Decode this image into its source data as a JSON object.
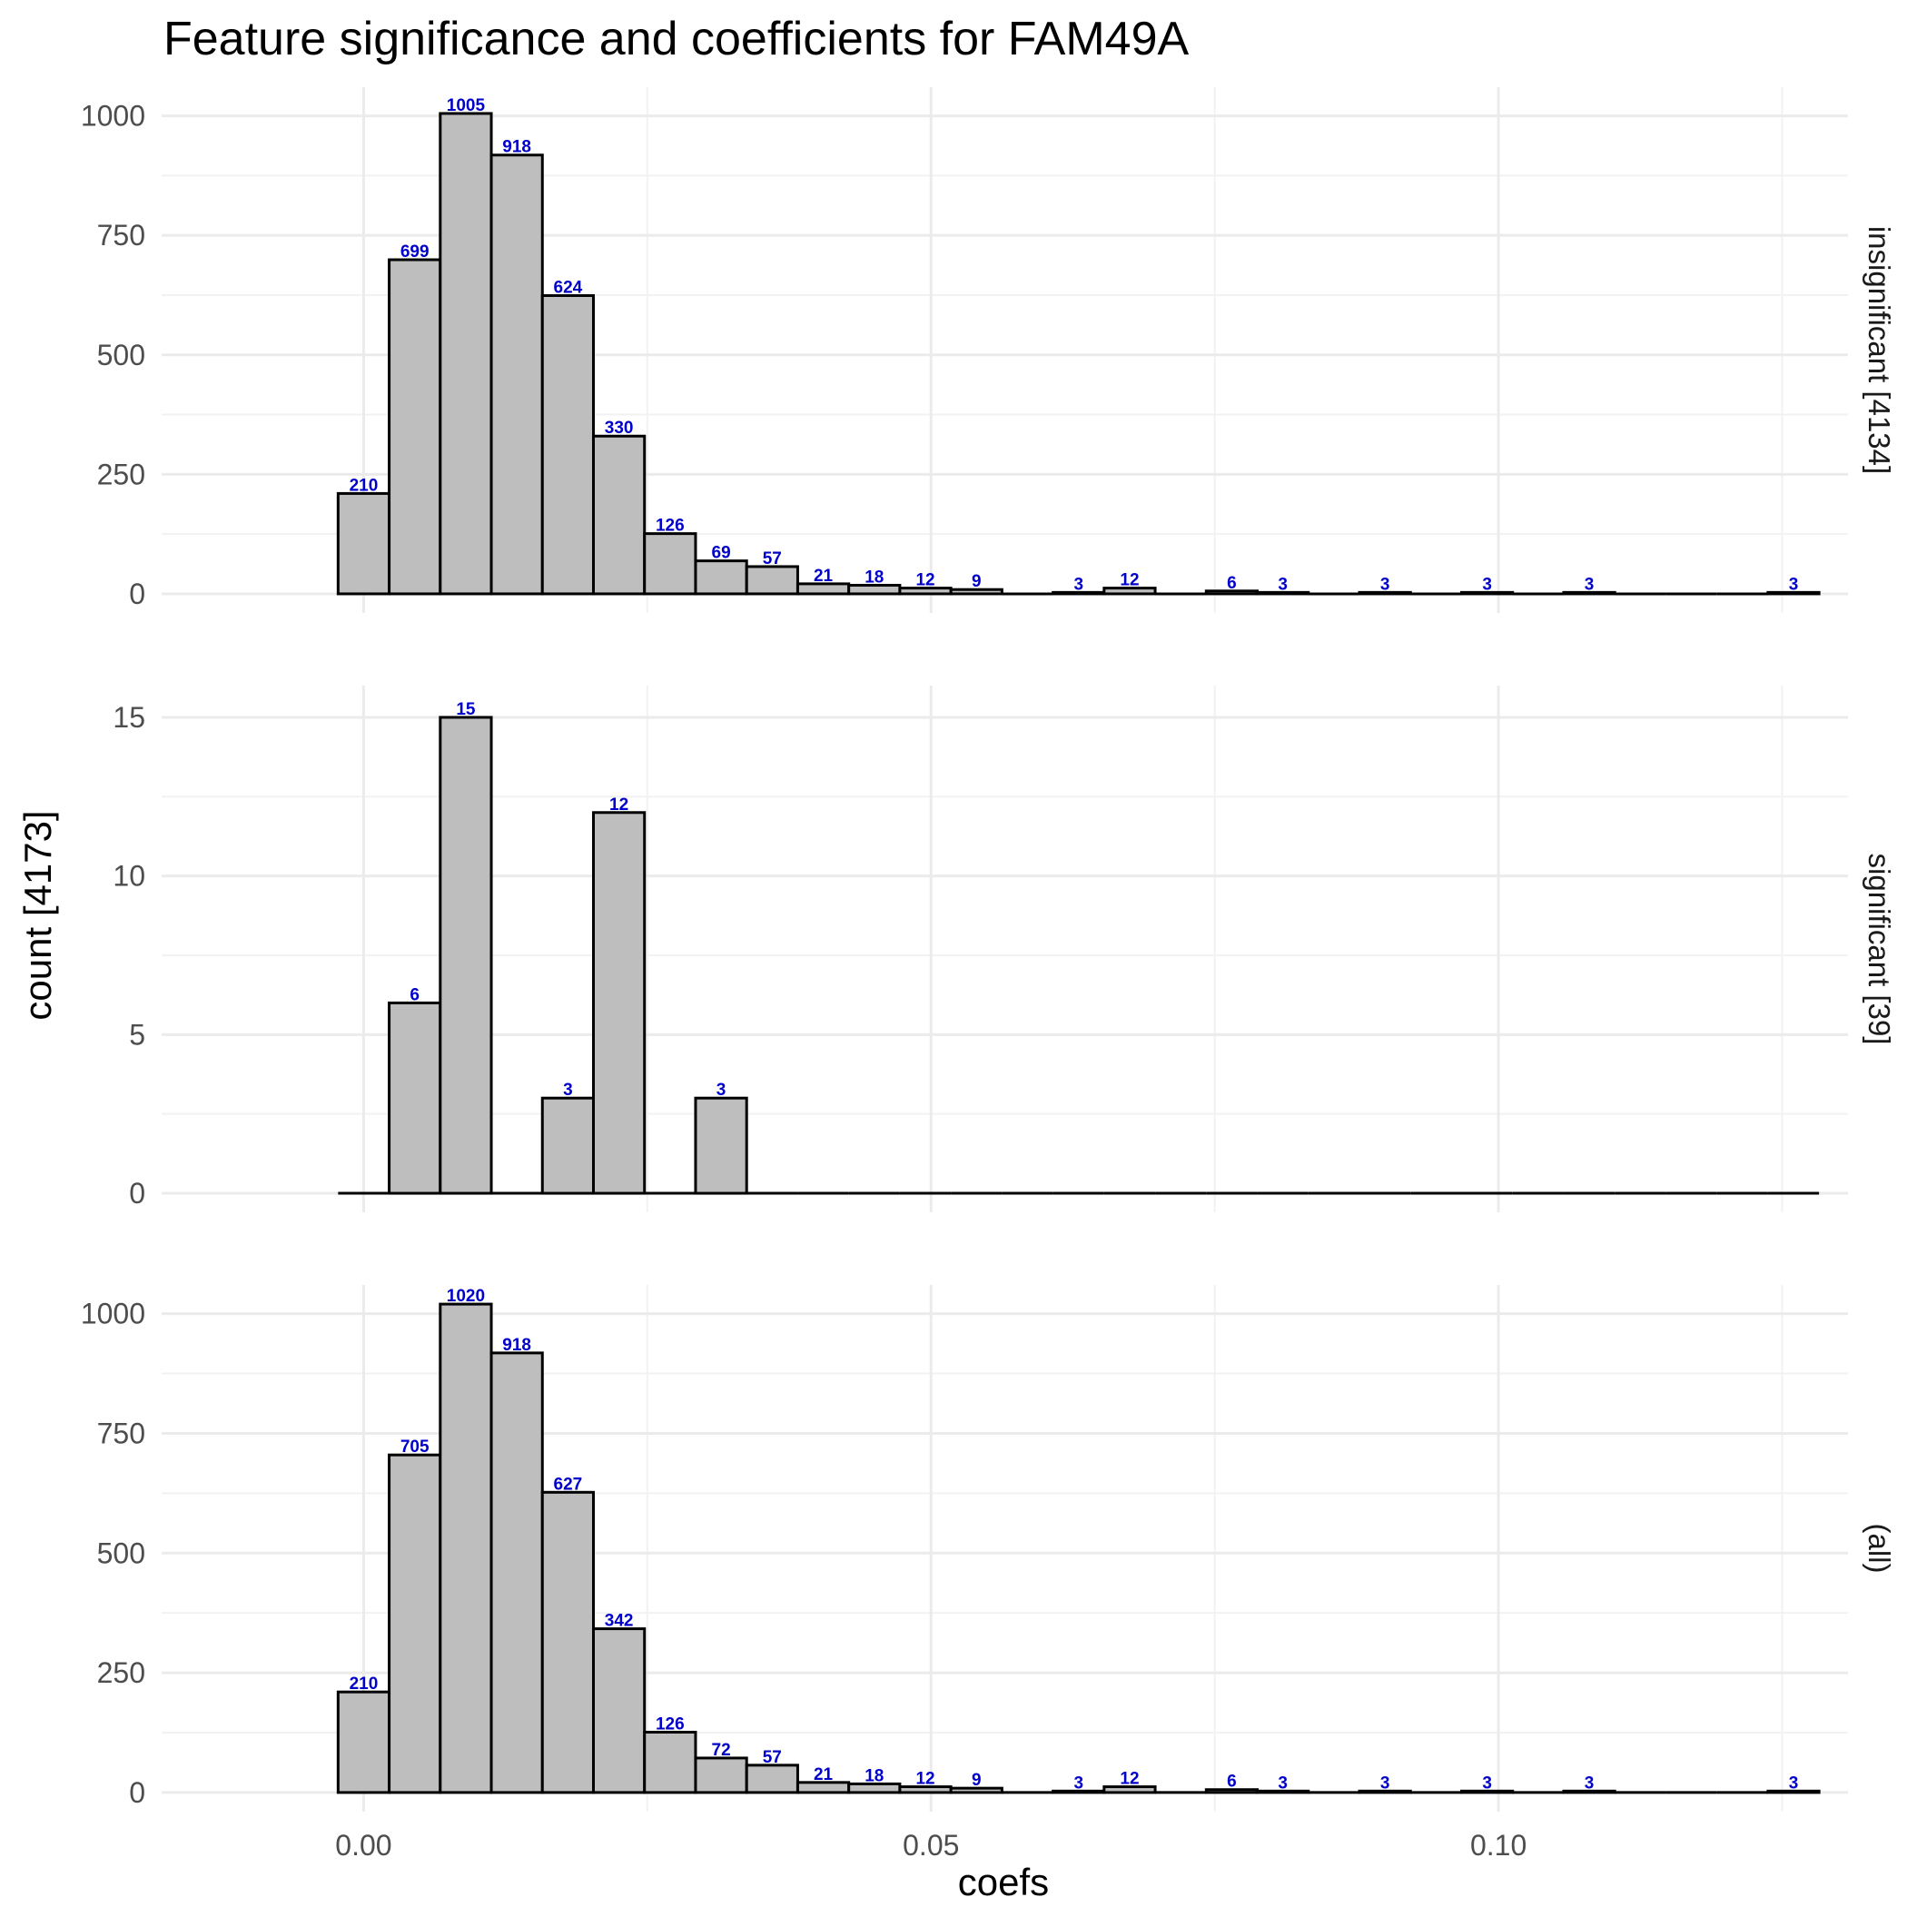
{
  "chart_data": {
    "type": "bar",
    "title": "Feature significance and coefficients for FAM49A",
    "xlabel": "coefs",
    "ylabel": "count [4173]",
    "xlim": [
      -0.0178,
      0.1308
    ],
    "x_ticks": [
      {
        "value": 0.0,
        "label": "0.00"
      },
      {
        "value": 0.05,
        "label": "0.05"
      },
      {
        "value": 0.1,
        "label": "0.10"
      }
    ],
    "bin_width": 0.0045,
    "bin_centers": [
      0.0,
      0.0045,
      0.009,
      0.0135,
      0.018,
      0.0225,
      0.027,
      0.0315,
      0.036,
      0.0405,
      0.045,
      0.0495,
      0.054,
      0.0585,
      0.063,
      0.0675,
      0.072,
      0.0765,
      0.081,
      0.0855,
      0.09,
      0.0945,
      0.099,
      0.1035,
      0.108,
      0.1125,
      0.117,
      0.1215,
      0.126
    ],
    "grid": true,
    "panels": [
      {
        "strip": "insignificant [4134]",
        "ylim": [
          -40,
          1060
        ],
        "y_ticks": [
          {
            "value": 0,
            "label": "0"
          },
          {
            "value": 250,
            "label": "250"
          },
          {
            "value": 500,
            "label": "500"
          },
          {
            "value": 750,
            "label": "750"
          },
          {
            "value": 1000,
            "label": "1000"
          }
        ],
        "values": [
          210,
          699,
          1005,
          918,
          624,
          330,
          126,
          69,
          57,
          21,
          18,
          12,
          9,
          0,
          3,
          12,
          0,
          6,
          3,
          0,
          3,
          0,
          3,
          0,
          3,
          0,
          0,
          0,
          3
        ]
      },
      {
        "strip": "significant [39]",
        "ylim": [
          -0.6,
          16.0
        ],
        "y_ticks": [
          {
            "value": 0,
            "label": "0"
          },
          {
            "value": 5,
            "label": "5"
          },
          {
            "value": 10,
            "label": "10"
          },
          {
            "value": 15,
            "label": "15"
          }
        ],
        "values": [
          0,
          6,
          15,
          0,
          3,
          12,
          0,
          3,
          0,
          0,
          0,
          0,
          0,
          0,
          0,
          0,
          0,
          0,
          0,
          0,
          0,
          0,
          0,
          0,
          0,
          0,
          0,
          0,
          0
        ]
      },
      {
        "strip": "(all)",
        "ylim": [
          -40,
          1060
        ],
        "y_ticks": [
          {
            "value": 0,
            "label": "0"
          },
          {
            "value": 250,
            "label": "250"
          },
          {
            "value": 500,
            "label": "500"
          },
          {
            "value": 750,
            "label": "750"
          },
          {
            "value": 1000,
            "label": "1000"
          }
        ],
        "values": [
          210,
          705,
          1020,
          918,
          627,
          342,
          126,
          72,
          57,
          21,
          18,
          12,
          9,
          0,
          3,
          12,
          0,
          6,
          3,
          0,
          3,
          0,
          3,
          0,
          3,
          0,
          0,
          0,
          3
        ]
      }
    ]
  }
}
